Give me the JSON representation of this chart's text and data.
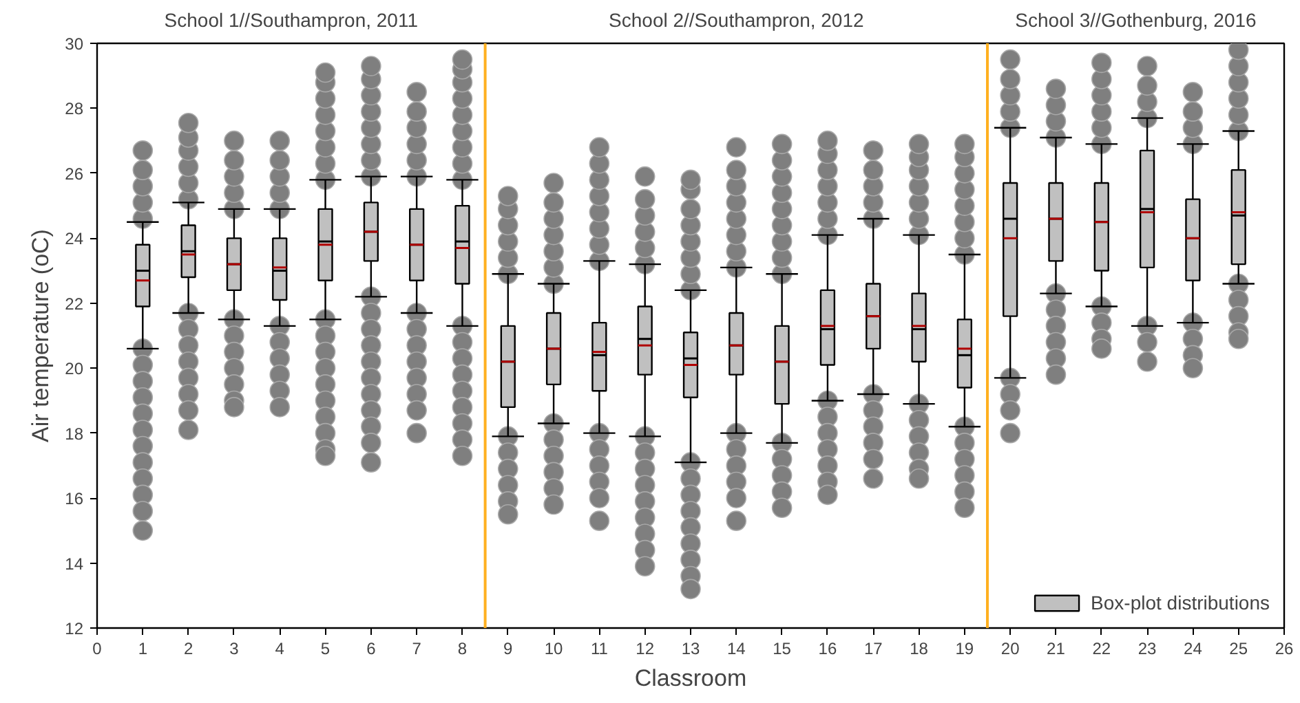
{
  "chart_data": {
    "type": "box",
    "xlabel": "Classroom",
    "ylabel": "Air temperature (oC)",
    "x": [
      1,
      2,
      3,
      4,
      5,
      6,
      7,
      8,
      9,
      10,
      11,
      12,
      13,
      14,
      15,
      16,
      17,
      18,
      19,
      20,
      21,
      22,
      23,
      24,
      25
    ],
    "xlim": [
      0,
      26
    ],
    "xticks": [
      0,
      1,
      2,
      3,
      4,
      5,
      6,
      7,
      8,
      9,
      10,
      11,
      12,
      13,
      14,
      15,
      16,
      17,
      18,
      19,
      20,
      21,
      22,
      23,
      24,
      25,
      26
    ],
    "ylim": [
      12,
      30
    ],
    "yticks": [
      12,
      14,
      16,
      18,
      20,
      22,
      24,
      26,
      28,
      30
    ],
    "grid": false,
    "legend": "bottom right",
    "ref_lines": [
      {
        "axis": "x",
        "value": 8.5,
        "color": "#ffb020"
      },
      {
        "axis": "x",
        "value": 19.5,
        "color": "#ffb020"
      }
    ],
    "annotations": [
      "School 1//Southampron, 2011",
      "School 2//Southampron, 2012",
      "School 3//Gothenburg, 2016"
    ],
    "series": [
      {
        "name": "Box-plot distributions",
        "color": "#c0c0c0",
        "boxes": [
          {
            "low": 20.6,
            "q1": 21.9,
            "median": 23.0,
            "q3": 23.8,
            "high": 24.5,
            "mean": 22.7,
            "outliers": [
              24.6,
              25.1,
              25.6,
              26.1,
              26.7,
              20.6,
              20.1,
              19.6,
              19.1,
              18.6,
              18.1,
              17.6,
              17.1,
              16.6,
              16.1,
              15.6,
              15.0
            ]
          },
          {
            "low": 21.7,
            "q1": 22.8,
            "median": 23.6,
            "q3": 24.4,
            "high": 25.1,
            "mean": 23.5,
            "outliers": [
              25.2,
              25.7,
              26.2,
              26.7,
              27.1,
              27.55,
              21.7,
              21.2,
              20.7,
              20.2,
              19.7,
              19.2,
              18.7,
              18.1
            ]
          },
          {
            "low": 21.5,
            "q1": 22.4,
            "median": 23.2,
            "q3": 24.0,
            "high": 24.9,
            "mean": 23.2,
            "outliers": [
              24.9,
              25.4,
              25.9,
              26.4,
              27.0,
              21.5,
              21.0,
              20.5,
              20.0,
              19.5,
              19.0,
              18.8
            ]
          },
          {
            "low": 21.3,
            "q1": 22.1,
            "median": 23.0,
            "q3": 24.0,
            "high": 24.9,
            "mean": 23.1,
            "outliers": [
              24.9,
              25.4,
              25.9,
              26.4,
              27.0,
              21.3,
              20.8,
              20.3,
              19.8,
              19.3,
              18.8
            ]
          },
          {
            "low": 21.5,
            "q1": 22.7,
            "median": 23.9,
            "q3": 24.9,
            "high": 25.8,
            "mean": 23.8,
            "outliers": [
              25.8,
              26.3,
              26.8,
              27.3,
              27.8,
              28.3,
              28.8,
              29.1,
              21.5,
              21.0,
              20.5,
              20.0,
              19.5,
              19.0,
              18.5,
              18.0,
              17.5,
              17.3
            ]
          },
          {
            "low": 22.2,
            "q1": 23.3,
            "median": 24.2,
            "q3": 25.1,
            "high": 25.9,
            "mean": 24.2,
            "outliers": [
              25.9,
              26.4,
              26.9,
              27.4,
              27.9,
              28.4,
              28.9,
              29.3,
              22.2,
              21.7,
              21.2,
              20.7,
              20.2,
              19.7,
              19.2,
              18.7,
              18.2,
              17.7,
              17.1
            ]
          },
          {
            "low": 21.7,
            "q1": 22.7,
            "median": 23.8,
            "q3": 24.9,
            "high": 25.9,
            "mean": 23.8,
            "outliers": [
              25.9,
              26.4,
              26.9,
              27.4,
              27.9,
              28.5,
              21.7,
              21.2,
              20.7,
              20.2,
              19.7,
              19.2,
              18.7,
              18.0
            ]
          },
          {
            "low": 21.3,
            "q1": 22.6,
            "median": 23.9,
            "q3": 25.0,
            "high": 25.8,
            "mean": 23.7,
            "outliers": [
              25.8,
              26.3,
              26.8,
              27.3,
              27.8,
              28.3,
              28.8,
              29.2,
              29.5,
              21.3,
              20.8,
              20.3,
              19.8,
              19.3,
              18.8,
              18.3,
              17.8,
              17.3
            ]
          },
          {
            "low": 17.9,
            "q1": 18.8,
            "median": 20.2,
            "q3": 21.3,
            "high": 22.9,
            "mean": 20.2,
            "outliers": [
              22.9,
              23.4,
              23.9,
              24.4,
              24.9,
              25.3,
              17.9,
              17.4,
              16.9,
              16.4,
              15.9,
              15.5
            ]
          },
          {
            "low": 18.3,
            "q1": 19.5,
            "median": 20.6,
            "q3": 21.7,
            "high": 22.6,
            "mean": 20.6,
            "outliers": [
              22.6,
              23.1,
              23.6,
              24.1,
              24.6,
              25.1,
              25.7,
              18.3,
              17.8,
              17.3,
              16.8,
              16.3,
              15.8
            ]
          },
          {
            "low": 18.0,
            "q1": 19.3,
            "median": 20.4,
            "q3": 21.4,
            "high": 23.3,
            "mean": 20.5,
            "outliers": [
              23.3,
              23.8,
              24.3,
              24.8,
              25.3,
              25.8,
              26.3,
              26.8,
              18.0,
              17.5,
              17.0,
              16.5,
              16.0,
              15.3
            ]
          },
          {
            "low": 17.9,
            "q1": 19.8,
            "median": 20.9,
            "q3": 21.9,
            "high": 23.2,
            "mean": 20.7,
            "outliers": [
              23.2,
              23.7,
              24.2,
              24.7,
              25.2,
              25.9,
              17.9,
              17.4,
              16.9,
              16.4,
              15.9,
              15.4,
              14.9,
              14.4,
              13.9
            ]
          },
          {
            "low": 17.1,
            "q1": 19.1,
            "median": 20.3,
            "q3": 21.1,
            "high": 22.4,
            "mean": 20.1,
            "outliers": [
              22.4,
              22.9,
              23.4,
              23.9,
              24.4,
              24.9,
              25.5,
              25.8,
              17.1,
              16.6,
              16.1,
              15.6,
              15.1,
              14.6,
              14.1,
              13.6,
              13.2
            ]
          },
          {
            "low": 18.0,
            "q1": 19.8,
            "median": 20.7,
            "q3": 21.7,
            "high": 23.1,
            "mean": 20.7,
            "outliers": [
              23.1,
              23.6,
              24.1,
              24.6,
              25.1,
              25.6,
              26.1,
              26.8,
              18.0,
              17.5,
              17.0,
              16.5,
              16.0,
              15.3
            ]
          },
          {
            "low": 17.7,
            "q1": 18.9,
            "median": 20.2,
            "q3": 21.3,
            "high": 22.9,
            "mean": 20.2,
            "outliers": [
              22.9,
              23.4,
              23.9,
              24.4,
              24.9,
              25.4,
              25.9,
              26.4,
              26.9,
              17.7,
              17.2,
              16.7,
              16.2,
              15.7
            ]
          },
          {
            "low": 19.0,
            "q1": 20.1,
            "median": 21.2,
            "q3": 22.4,
            "high": 24.1,
            "mean": 21.3,
            "outliers": [
              24.1,
              24.6,
              25.1,
              25.6,
              26.1,
              26.6,
              27.0,
              19.0,
              18.5,
              18.0,
              17.5,
              17.0,
              16.5,
              16.1
            ]
          },
          {
            "low": 19.2,
            "q1": 20.6,
            "median": 21.6,
            "q3": 22.6,
            "high": 24.6,
            "mean": 21.6,
            "outliers": [
              24.6,
              25.1,
              25.6,
              26.1,
              26.7,
              19.2,
              18.7,
              18.2,
              17.7,
              17.2,
              16.6
            ]
          },
          {
            "low": 18.9,
            "q1": 20.2,
            "median": 21.2,
            "q3": 22.3,
            "high": 24.1,
            "mean": 21.3,
            "outliers": [
              24.1,
              24.6,
              25.1,
              25.6,
              26.1,
              26.5,
              26.9,
              18.9,
              18.4,
              17.9,
              17.4,
              16.9,
              16.6
            ]
          },
          {
            "low": 18.2,
            "q1": 19.4,
            "median": 20.4,
            "q3": 21.5,
            "high": 23.5,
            "mean": 20.6,
            "outliers": [
              23.5,
              24.0,
              24.5,
              25.0,
              25.5,
              26.0,
              26.5,
              26.9,
              18.2,
              17.7,
              17.2,
              16.7,
              16.2,
              15.7
            ]
          },
          {
            "low": 19.7,
            "q1": 21.6,
            "median": 24.6,
            "q3": 25.7,
            "high": 27.4,
            "mean": 24.0,
            "outliers": [
              27.4,
              27.9,
              28.4,
              28.9,
              29.5,
              19.7,
              19.2,
              18.7,
              18.0
            ]
          },
          {
            "low": 22.3,
            "q1": 23.3,
            "median": 24.6,
            "q3": 25.7,
            "high": 27.1,
            "mean": 24.6,
            "outliers": [
              27.1,
              27.6,
              28.1,
              28.6,
              22.3,
              21.8,
              21.3,
              20.8,
              20.3,
              19.8
            ]
          },
          {
            "low": 21.9,
            "q1": 23.0,
            "median": 24.5,
            "q3": 25.7,
            "high": 26.9,
            "mean": 24.5,
            "outliers": [
              26.9,
              27.4,
              27.9,
              28.4,
              28.9,
              29.4,
              21.9,
              21.4,
              20.9,
              20.6
            ]
          },
          {
            "low": 21.3,
            "q1": 23.1,
            "median": 24.9,
            "q3": 26.7,
            "high": 27.7,
            "mean": 24.8,
            "outliers": [
              27.7,
              28.2,
              28.7,
              29.3,
              21.3,
              20.8,
              20.2
            ]
          },
          {
            "low": 21.4,
            "q1": 22.7,
            "median": 24.0,
            "q3": 25.2,
            "high": 26.9,
            "mean": 24.0,
            "outliers": [
              26.9,
              27.4,
              27.9,
              28.5,
              21.4,
              20.9,
              20.4,
              20.0
            ]
          },
          {
            "low": 22.6,
            "q1": 23.2,
            "median": 24.7,
            "q3": 26.1,
            "high": 27.3,
            "mean": 24.8,
            "outliers": [
              27.3,
              27.8,
              28.3,
              28.8,
              29.3,
              29.8,
              22.6,
              22.1,
              21.6,
              21.1,
              20.9
            ]
          }
        ]
      }
    ]
  }
}
